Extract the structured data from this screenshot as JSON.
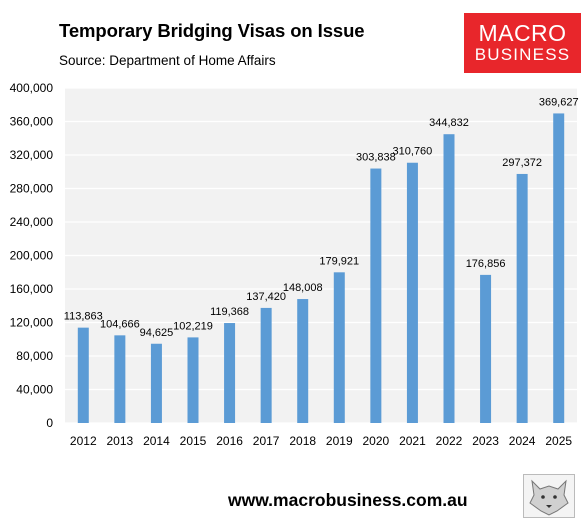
{
  "header": {
    "title": "Temporary Bridging Visas on Issue",
    "subtitle": "Source: Department of Home Affairs"
  },
  "logo": {
    "line1": "MACRO",
    "line2": "BUSINESS",
    "color": "#e8262b"
  },
  "footer": {
    "url": "www.macrobusiness.com.au"
  },
  "wolf_image": {
    "icon": "wolf-head-icon"
  },
  "colors": {
    "bar": "#5b9bd5",
    "plot_bg": "#f2f2f2",
    "grid": "#ffffff"
  },
  "chart_data": {
    "type": "bar",
    "categories": [
      "2012",
      "2013",
      "2014",
      "2015",
      "2016",
      "2017",
      "2018",
      "2019",
      "2020",
      "2021",
      "2022",
      "2023",
      "2024",
      "2025"
    ],
    "values": [
      113863,
      104666,
      94625,
      102219,
      119368,
      137420,
      148008,
      179921,
      303838,
      310760,
      344832,
      176856,
      297372,
      369627
    ],
    "data_labels": [
      "113,863",
      "104,666",
      "94,625",
      "102,219",
      "119,368",
      "137,420",
      "148,008",
      "179,921",
      "303,838",
      "310,760",
      "344,832",
      "176,856",
      "297,372",
      "369,627"
    ],
    "ylim": [
      0,
      400000
    ],
    "yticks": [
      0,
      40000,
      80000,
      120000,
      160000,
      200000,
      240000,
      280000,
      320000,
      360000,
      400000
    ],
    "ytick_labels": [
      "0",
      "40,000",
      "80,000",
      "120,000",
      "160,000",
      "200,000",
      "240,000",
      "280,000",
      "320,000",
      "360,000",
      "400,000"
    ],
    "grid": true,
    "legend": "none"
  }
}
